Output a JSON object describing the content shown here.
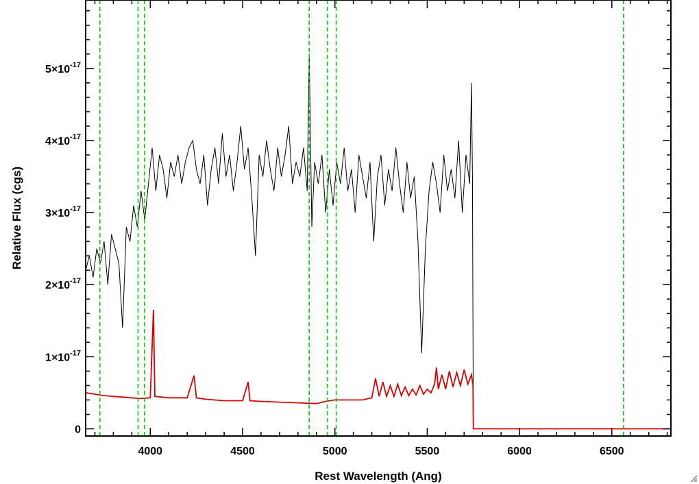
{
  "chart_data": {
    "type": "line",
    "title": "",
    "xlabel": "Rest Wavelength (Ang)",
    "ylabel": "Relative Flux (cgs)",
    "xlim": [
      3650,
      6820
    ],
    "ylim": [
      -0.1,
      5.95
    ],
    "y_scale_label": "×10",
    "y_exponent": "-17",
    "x_ticks": [
      {
        "value": 4000,
        "label": "4000"
      },
      {
        "value": 4500,
        "label": "4500"
      },
      {
        "value": 5000,
        "label": "5000"
      },
      {
        "value": 5500,
        "label": "5500"
      },
      {
        "value": 6000,
        "label": "6000"
      },
      {
        "value": 6500,
        "label": "6500"
      }
    ],
    "x_minor_step": 100,
    "y_ticks": [
      {
        "value": 0,
        "label": "0",
        "mantissa": ""
      },
      {
        "value": 1,
        "label": "1",
        "mantissa": "1"
      },
      {
        "value": 2,
        "label": "2",
        "mantissa": "2"
      },
      {
        "value": 3,
        "label": "3",
        "mantissa": "3"
      },
      {
        "value": 4,
        "label": "4",
        "mantissa": "4"
      },
      {
        "value": 5,
        "label": "5",
        "mantissa": "5"
      }
    ],
    "y_minor_step": 0.2,
    "grid": false,
    "colors": {
      "flux": "#000000",
      "error": "#dd0000",
      "lines": "#00cc00"
    },
    "reference_lines": [
      3727,
      3934,
      3969,
      4861,
      4959,
      5007,
      6563
    ],
    "series": [
      {
        "key": "flux",
        "points": [
          [
            3650,
            2.2
          ],
          [
            3670,
            2.4
          ],
          [
            3690,
            2.1
          ],
          [
            3710,
            2.5
          ],
          [
            3730,
            2.3
          ],
          [
            3750,
            2.6
          ],
          [
            3770,
            2.0
          ],
          [
            3790,
            2.7
          ],
          [
            3810,
            2.5
          ],
          [
            3830,
            2.3
          ],
          [
            3850,
            1.4
          ],
          [
            3870,
            2.8
          ],
          [
            3890,
            2.6
          ],
          [
            3910,
            3.1
          ],
          [
            3930,
            2.8
          ],
          [
            3950,
            3.3
          ],
          [
            3970,
            2.9
          ],
          [
            3990,
            3.4
          ],
          [
            4010,
            3.9
          ],
          [
            4030,
            3.3
          ],
          [
            4050,
            3.8
          ],
          [
            4070,
            3.6
          ],
          [
            4090,
            3.2
          ],
          [
            4110,
            3.7
          ],
          [
            4130,
            3.5
          ],
          [
            4150,
            3.8
          ],
          [
            4170,
            3.4
          ],
          [
            4190,
            3.7
          ],
          [
            4210,
            3.9
          ],
          [
            4230,
            4.0
          ],
          [
            4250,
            3.6
          ],
          [
            4270,
            3.4
          ],
          [
            4290,
            3.8
          ],
          [
            4310,
            3.1
          ],
          [
            4330,
            3.6
          ],
          [
            4350,
            3.9
          ],
          [
            4370,
            3.4
          ],
          [
            4390,
            4.1
          ],
          [
            4410,
            3.5
          ],
          [
            4430,
            3.8
          ],
          [
            4450,
            3.3
          ],
          [
            4470,
            3.7
          ],
          [
            4490,
            4.2
          ],
          [
            4510,
            3.6
          ],
          [
            4530,
            3.9
          ],
          [
            4550,
            3.2
          ],
          [
            4570,
            2.4
          ],
          [
            4590,
            3.8
          ],
          [
            4610,
            3.5
          ],
          [
            4630,
            4.0
          ],
          [
            4650,
            3.6
          ],
          [
            4670,
            3.3
          ],
          [
            4690,
            3.9
          ],
          [
            4710,
            3.5
          ],
          [
            4730,
            3.8
          ],
          [
            4750,
            4.2
          ],
          [
            4770,
            3.4
          ],
          [
            4790,
            3.7
          ],
          [
            4810,
            3.5
          ],
          [
            4830,
            3.9
          ],
          [
            4850,
            3.3
          ],
          [
            4861,
            5.2
          ],
          [
            4875,
            2.8
          ],
          [
            4890,
            3.7
          ],
          [
            4910,
            3.4
          ],
          [
            4930,
            3.8
          ],
          [
            4950,
            3.0
          ],
          [
            4970,
            3.6
          ],
          [
            4990,
            3.1
          ],
          [
            5010,
            3.7
          ],
          [
            5030,
            3.4
          ],
          [
            5050,
            3.9
          ],
          [
            5070,
            3.3
          ],
          [
            5090,
            3.6
          ],
          [
            5110,
            3.0
          ],
          [
            5130,
            3.8
          ],
          [
            5150,
            3.5
          ],
          [
            5170,
            3.2
          ],
          [
            5190,
            3.7
          ],
          [
            5210,
            2.6
          ],
          [
            5230,
            3.5
          ],
          [
            5250,
            3.8
          ],
          [
            5270,
            3.1
          ],
          [
            5290,
            3.6
          ],
          [
            5310,
            3.3
          ],
          [
            5330,
            3.9
          ],
          [
            5350,
            3.4
          ],
          [
            5370,
            3.0
          ],
          [
            5390,
            3.7
          ],
          [
            5410,
            3.2
          ],
          [
            5430,
            3.5
          ],
          [
            5450,
            2.6
          ],
          [
            5470,
            1.05
          ],
          [
            5490,
            2.5
          ],
          [
            5510,
            3.3
          ],
          [
            5530,
            3.7
          ],
          [
            5550,
            3.4
          ],
          [
            5570,
            3.0
          ],
          [
            5590,
            3.8
          ],
          [
            5610,
            3.3
          ],
          [
            5630,
            3.6
          ],
          [
            5650,
            3.2
          ],
          [
            5670,
            4.0
          ],
          [
            5690,
            3.0
          ],
          [
            5710,
            3.8
          ],
          [
            5730,
            3.4
          ],
          [
            5740,
            4.8
          ],
          [
            5745,
            3.5
          ],
          [
            5750,
            0.0
          ],
          [
            6820,
            0.0
          ]
        ]
      },
      {
        "key": "error",
        "points": [
          [
            3650,
            0.5
          ],
          [
            3700,
            0.48
          ],
          [
            3750,
            0.46
          ],
          [
            3800,
            0.45
          ],
          [
            3850,
            0.44
          ],
          [
            3900,
            0.43
          ],
          [
            3950,
            0.42
          ],
          [
            4000,
            0.43
          ],
          [
            4017,
            1.65
          ],
          [
            4025,
            0.45
          ],
          [
            4100,
            0.43
          ],
          [
            4200,
            0.43
          ],
          [
            4237,
            0.74
          ],
          [
            4250,
            0.43
          ],
          [
            4300,
            0.41
          ],
          [
            4400,
            0.39
          ],
          [
            4500,
            0.39
          ],
          [
            4530,
            0.65
          ],
          [
            4540,
            0.39
          ],
          [
            4600,
            0.38
          ],
          [
            4700,
            0.37
          ],
          [
            4800,
            0.36
          ],
          [
            4900,
            0.35
          ],
          [
            4950,
            0.38
          ],
          [
            5000,
            0.4
          ],
          [
            5050,
            0.4
          ],
          [
            5100,
            0.4
          ],
          [
            5150,
            0.4
          ],
          [
            5200,
            0.43
          ],
          [
            5220,
            0.7
          ],
          [
            5240,
            0.45
          ],
          [
            5260,
            0.65
          ],
          [
            5280,
            0.45
          ],
          [
            5300,
            0.6
          ],
          [
            5320,
            0.45
          ],
          [
            5340,
            0.62
          ],
          [
            5360,
            0.46
          ],
          [
            5380,
            0.58
          ],
          [
            5400,
            0.46
          ],
          [
            5420,
            0.55
          ],
          [
            5440,
            0.47
          ],
          [
            5460,
            0.6
          ],
          [
            5480,
            0.48
          ],
          [
            5500,
            0.55
          ],
          [
            5520,
            0.5
          ],
          [
            5540,
            0.62
          ],
          [
            5550,
            0.85
          ],
          [
            5560,
            0.55
          ],
          [
            5580,
            0.75
          ],
          [
            5600,
            0.55
          ],
          [
            5620,
            0.8
          ],
          [
            5640,
            0.58
          ],
          [
            5660,
            0.78
          ],
          [
            5680,
            0.6
          ],
          [
            5700,
            0.82
          ],
          [
            5720,
            0.62
          ],
          [
            5740,
            0.75
          ],
          [
            5748,
            0.6
          ],
          [
            5750,
            0.0
          ],
          [
            6820,
            0.0
          ]
        ]
      }
    ]
  }
}
